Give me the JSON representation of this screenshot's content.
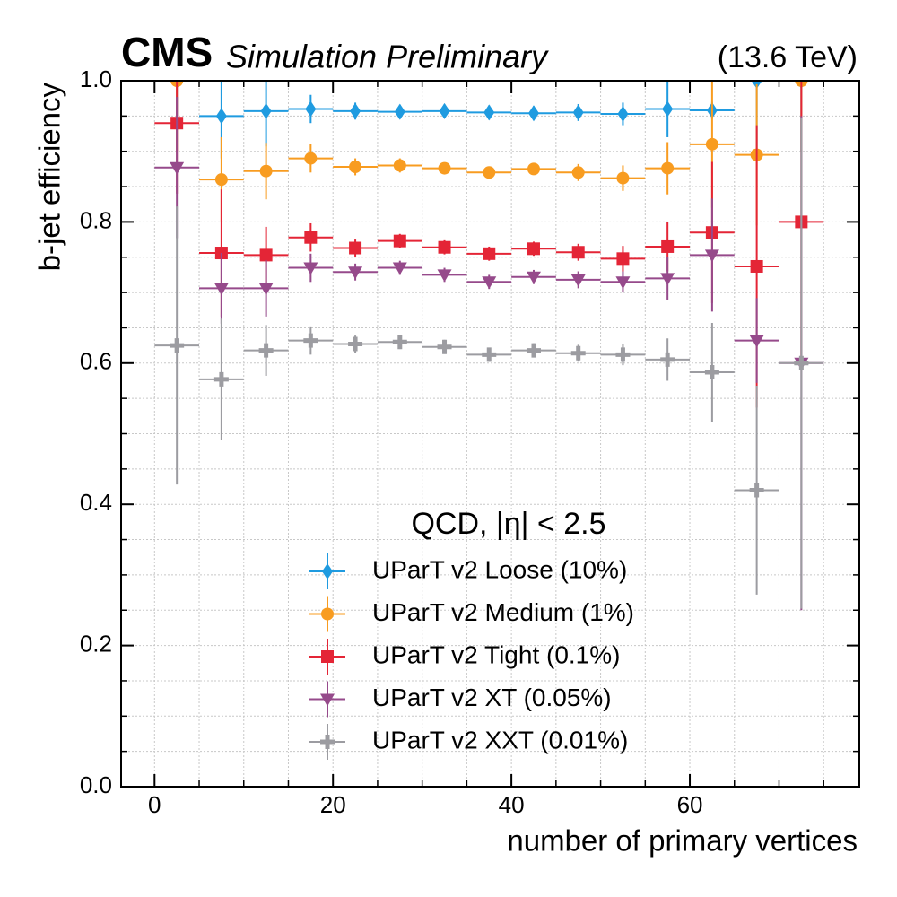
{
  "chart_data": {
    "type": "errorbar",
    "experiment": "CMS",
    "subtitle": "Simulation Preliminary",
    "energy": "(13.6 TeV)",
    "xlabel": "number of primary vertices",
    "ylabel": "b-jet efficiency",
    "legend_title": "QCD, |η| < 2.5",
    "legend": "lower center",
    "x": [
      2.5,
      7.5,
      12.5,
      17.5,
      22.5,
      27.5,
      32.5,
      37.5,
      42.5,
      47.5,
      52.5,
      57.5,
      62.5,
      67.5,
      72.5
    ],
    "x_err": 2.5,
    "xlim": [
      -3.75,
      79
    ],
    "ylim": [
      0,
      1
    ],
    "xticks": [
      0,
      20,
      40,
      60
    ],
    "yticks": [
      {
        "value": 0,
        "label": "0.0"
      },
      0.2,
      0.4,
      0.6,
      0.8,
      {
        "value": 1,
        "label": "1.0"
      }
    ],
    "grid": true,
    "series": [
      {
        "name": "UParT v2 Loose (10%)",
        "color": "#1f9be0",
        "marker": "diamond",
        "values": [
          1.0,
          0.95,
          0.957,
          0.96,
          0.957,
          0.956,
          0.957,
          0.955,
          0.954,
          0.955,
          0.953,
          0.96,
          0.958,
          1.0,
          1.0
        ],
        "errors": [
          0.05,
          0.06,
          0.05,
          0.02,
          0.012,
          0.01,
          0.01,
          0.01,
          0.01,
          0.012,
          0.016,
          0.04,
          0.012,
          0.1,
          0.1
        ]
      },
      {
        "name": "UParT v2 Medium (1%)",
        "color": "#f89c20",
        "marker": "circle",
        "values": [
          1.0,
          0.86,
          0.872,
          0.89,
          0.878,
          0.88,
          0.876,
          0.87,
          0.875,
          0.87,
          0.862,
          0.876,
          0.91,
          0.895,
          1.0
        ],
        "errors": [
          0.1,
          0.06,
          0.04,
          0.02,
          0.012,
          0.01,
          0.008,
          0.008,
          0.008,
          0.012,
          0.018,
          0.037,
          0.09,
          0.1,
          0.1
        ]
      },
      {
        "name": "UParT v2 Tight (0.1%)",
        "color": "#e42536",
        "marker": "square",
        "values": [
          0.94,
          0.756,
          0.753,
          0.778,
          0.763,
          0.773,
          0.764,
          0.755,
          0.762,
          0.757,
          0.748,
          0.765,
          0.785,
          0.737,
          0.8
        ],
        "errors": [
          0.1,
          0.09,
          0.04,
          0.02,
          0.012,
          0.01,
          0.01,
          0.01,
          0.01,
          0.012,
          0.018,
          0.035,
          0.1,
          0.2,
          0.2
        ]
      },
      {
        "name": "UParT v2 XT (0.05%)",
        "color": "#964a8b",
        "marker": "triangle-down",
        "values": [
          0.877,
          0.706,
          0.706,
          0.735,
          0.729,
          0.735,
          0.725,
          0.715,
          0.722,
          0.718,
          0.715,
          0.72,
          0.753,
          0.632,
          0.6
        ],
        "errors": [
          0.1,
          0.05,
          0.04,
          0.02,
          0.012,
          0.01,
          0.01,
          0.01,
          0.01,
          0.012,
          0.015,
          0.03,
          0.08,
          0.06,
          0.35
        ]
      },
      {
        "name": "UParT v2 XXT (0.01%)",
        "color": "#9c9ca1",
        "marker": "plus",
        "values": [
          0.625,
          0.577,
          0.618,
          0.632,
          0.627,
          0.63,
          0.623,
          0.612,
          0.618,
          0.614,
          0.612,
          0.605,
          0.587,
          0.42,
          0.6
        ],
        "errors": [
          0.197,
          0.086,
          0.036,
          0.02,
          0.012,
          0.01,
          0.01,
          0.01,
          0.01,
          0.012,
          0.015,
          0.03,
          0.07,
          0.148,
          0.348
        ]
      }
    ]
  }
}
